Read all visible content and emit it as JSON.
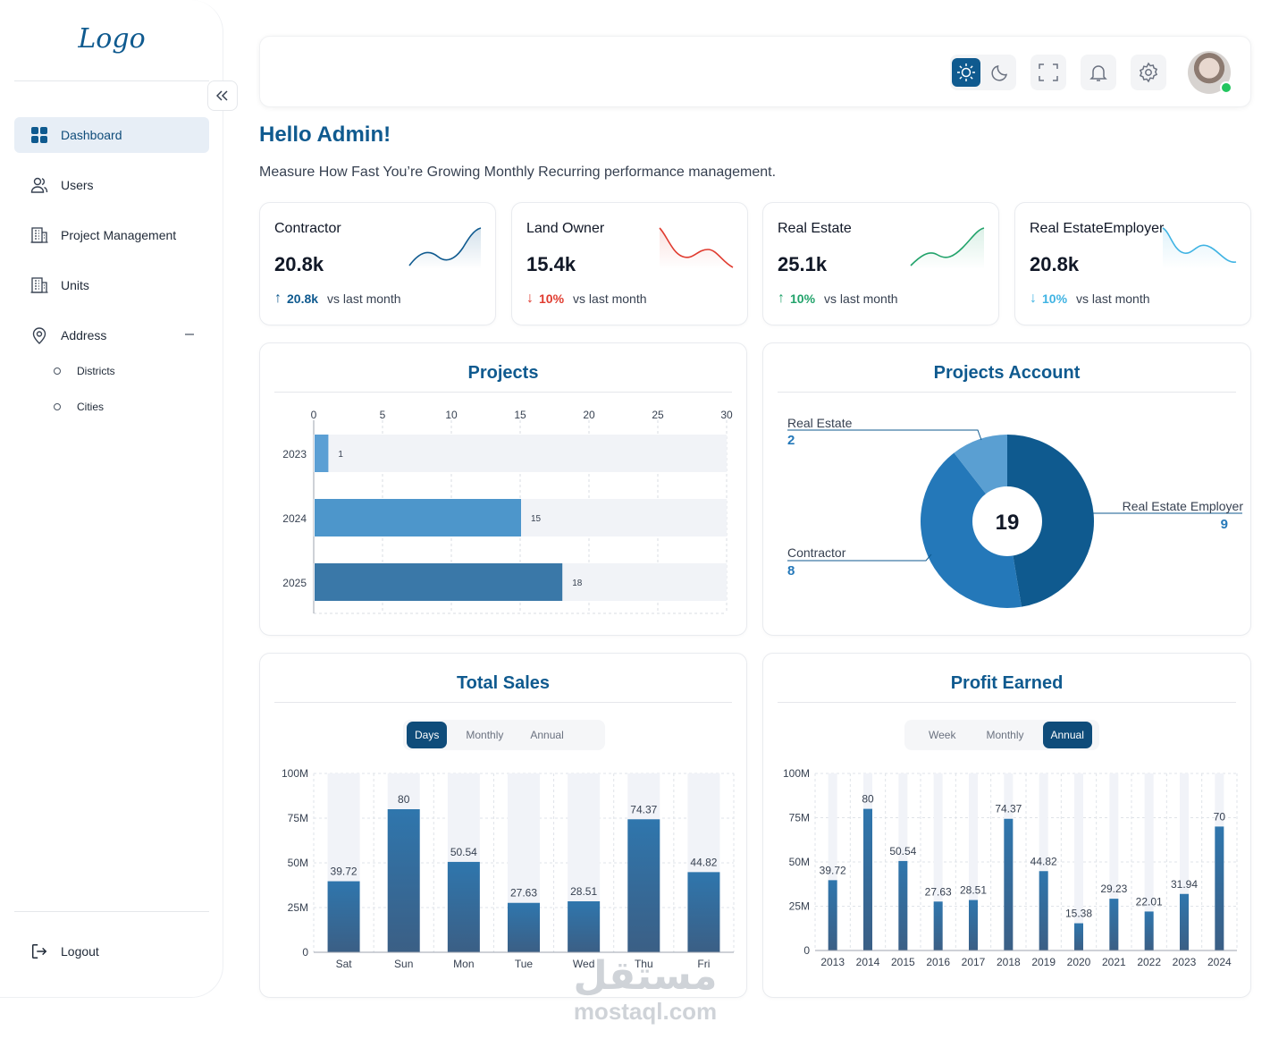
{
  "sidebar": {
    "logo": "Logo",
    "items": [
      {
        "label": "Dashboard",
        "icon": "grid-icon",
        "active": true
      },
      {
        "label": "Users",
        "icon": "users-icon"
      },
      {
        "label": "Project Management",
        "icon": "building-icon"
      },
      {
        "label": "Units",
        "icon": "building-icon"
      },
      {
        "label": "Address",
        "icon": "location-pin-icon",
        "expanded": true
      }
    ],
    "address_children": [
      "Districts",
      "Cities"
    ],
    "logout": "Logout"
  },
  "header": {
    "greeting": "Hello Admin!",
    "subtitle": "Measure How Fast You’re Growing Monthly Recurring performance management."
  },
  "stats": [
    {
      "title": "Contractor",
      "value": "20.8k",
      "change": "20.8k",
      "direction": "up",
      "vs": "vs last month",
      "color": "#0f5a8f"
    },
    {
      "title": "Land Owner",
      "value": "15.4k",
      "change": "10%",
      "direction": "down",
      "vs": "vs last month",
      "color": "#e03b2f"
    },
    {
      "title": "Real Estate",
      "value": "25.1k",
      "change": "10%",
      "direction": "up",
      "vs": "vs last month",
      "color": "#22a36b"
    },
    {
      "title": "Real EstateEmployer",
      "value": "20.8k",
      "change": "10%",
      "direction": "down",
      "vs": "vs last month",
      "color": "#3fb3e3"
    }
  ],
  "projects": {
    "title": "Projects",
    "chart_data": {
      "type": "bar",
      "orientation": "horizontal",
      "categories": [
        "2023",
        "2024",
        "2025"
      ],
      "values": [
        1,
        15,
        18
      ],
      "xlim": [
        0,
        30
      ],
      "xticks": [
        0,
        5,
        10,
        15,
        20,
        25,
        30
      ],
      "colors": [
        "#5b9fd4",
        "#4d96cb",
        "#3a78a8"
      ]
    }
  },
  "projects_account": {
    "title": "Projects Account",
    "total": "19",
    "chart_data": {
      "type": "pie",
      "labels": [
        "Real Estate Employer",
        "Contractor",
        "Real Estate"
      ],
      "values": [
        9,
        8,
        2
      ],
      "colors": [
        "#0f5a8f",
        "#2478b9",
        "#5a9fd2"
      ]
    },
    "label_values": [
      "2",
      "9",
      "8"
    ]
  },
  "total_sales": {
    "title": "Total Sales",
    "tabs": [
      "Days",
      "Monthly",
      "Annual"
    ],
    "active_tab": "Days",
    "chart_data": {
      "type": "bar",
      "categories": [
        "Sat",
        "Sun",
        "Mon",
        "Tue",
        "Wed",
        "Thu",
        "Fri"
      ],
      "values": [
        39.72,
        80,
        50.54,
        27.63,
        28.51,
        74.37,
        44.82
      ],
      "ylim": [
        0,
        100
      ],
      "yticks": [
        "0",
        "25M",
        "50M",
        "75M",
        "100M"
      ]
    }
  },
  "profit_earned": {
    "title": "Profit Earned",
    "tabs": [
      "Week",
      "Monthly",
      "Annual"
    ],
    "active_tab": "Annual",
    "chart_data": {
      "type": "bar",
      "categories": [
        "2013",
        "2014",
        "2015",
        "2016",
        "2017",
        "2018",
        "2019",
        "2020",
        "2021",
        "2022",
        "2023",
        "2024"
      ],
      "values": [
        39.72,
        80,
        50.54,
        27.63,
        28.51,
        74.37,
        44.82,
        15.38,
        29.23,
        22.01,
        31.94,
        70
      ],
      "ylim": [
        0,
        100
      ],
      "yticks": [
        "0",
        "25M",
        "50M",
        "75M",
        "100M"
      ]
    }
  },
  "watermark": {
    "ar": "مستقل",
    "en": "mostaql.com"
  }
}
